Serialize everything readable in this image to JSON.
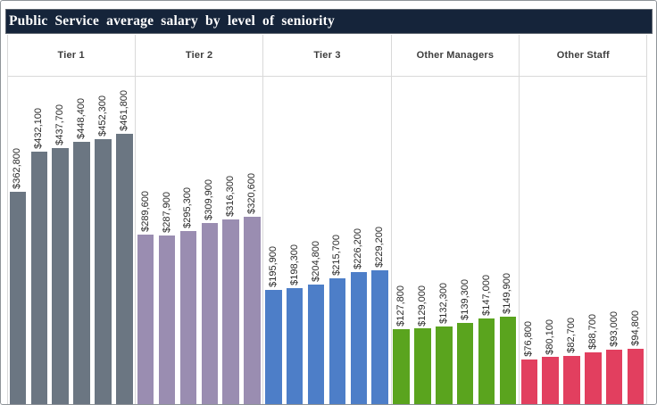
{
  "title": "Public Service average salary by level of seniority",
  "colors": {
    "title_bar_bg": "#15243a",
    "title_text": "#ffffff",
    "frame_border": "#8f9499",
    "separator_line": "#d9d9d9",
    "header_text": "#3d3d3d",
    "bar_label_text": "#2b2b2b"
  },
  "chart_data": {
    "type": "bar",
    "title": "Public Service average salary by level of seniority",
    "xlabel": "",
    "ylabel": "",
    "ylim": [
      0,
      461800
    ],
    "grid": "vertical-group-separators-only",
    "legend": "none",
    "axes_visible": false,
    "value_label_rotation": 90,
    "groups": [
      {
        "label": "Tier 1",
        "color": "#6b7682",
        "values": [
          362800,
          432100,
          437700,
          448400,
          452300,
          461800
        ],
        "display_values": [
          "$362,800",
          "$432,100",
          "$437,700",
          "$448,400",
          "$452,300",
          "$461,800"
        ]
      },
      {
        "label": "Tier 2",
        "color": "#9a8db1",
        "values": [
          289600,
          287900,
          295300,
          309900,
          316300,
          320600
        ],
        "display_values": [
          "$289,600",
          "$287,900",
          "$295,300",
          "$309,900",
          "$316,300",
          "$320,600"
        ]
      },
      {
        "label": "Tier 3",
        "color": "#4d7ec8",
        "values": [
          195900,
          198300,
          204800,
          215700,
          226200,
          229200
        ],
        "display_values": [
          "$195,900",
          "$198,300",
          "$204,800",
          "$215,700",
          "$226,200",
          "$229,200"
        ]
      },
      {
        "label": "Other Managers",
        "color": "#5aa41e",
        "values": [
          127800,
          129000,
          132300,
          139300,
          147000,
          149900
        ],
        "display_values": [
          "$127,800",
          "$129,000",
          "$132,300",
          "$139,300",
          "$147,000",
          "$149,900"
        ]
      },
      {
        "label": "Other Staff",
        "color": "#e23f5f",
        "values": [
          76800,
          80100,
          82700,
          88700,
          93000,
          94800
        ],
        "display_values": [
          "$76,800",
          "$80,100",
          "$82,700",
          "$88,700",
          "$93,000",
          "$94,800"
        ]
      }
    ]
  }
}
